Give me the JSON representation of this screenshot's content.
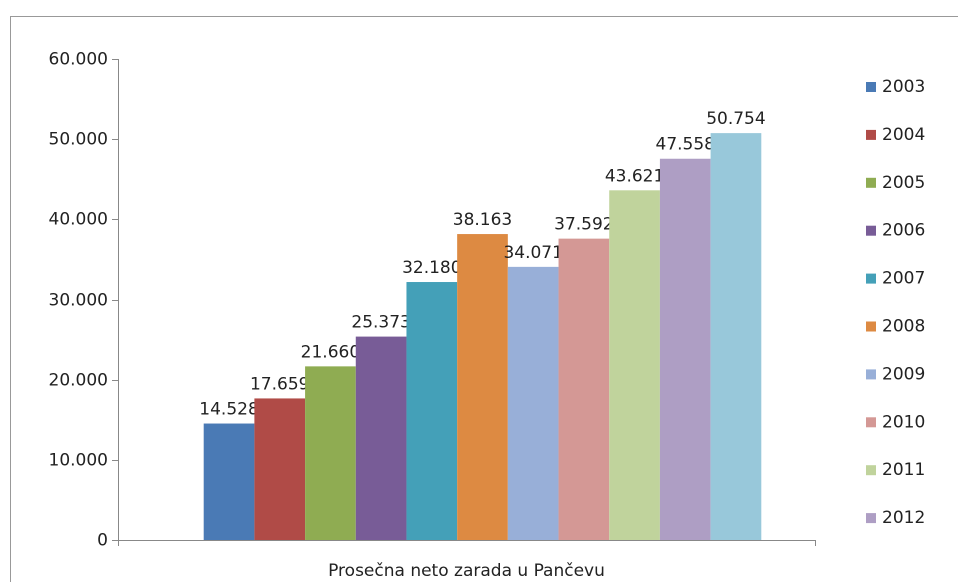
{
  "chart_data": {
    "type": "bar",
    "categories": [
      "Prosečna neto zarada u Pančevu"
    ],
    "series": [
      {
        "name": "2003",
        "color": "#4a7ab5",
        "values": [
          14528
        ],
        "value_labels": [
          "14.528"
        ]
      },
      {
        "name": "2004",
        "color": "#b04b47",
        "values": [
          17659
        ],
        "value_labels": [
          "17.659"
        ]
      },
      {
        "name": "2005",
        "color": "#8fac52",
        "values": [
          21660
        ],
        "value_labels": [
          "21.660"
        ]
      },
      {
        "name": "2006",
        "color": "#785c97",
        "values": [
          25373
        ],
        "value_labels": [
          "25.373"
        ]
      },
      {
        "name": "2007",
        "color": "#44a0b8",
        "values": [
          32180
        ],
        "value_labels": [
          "32.180"
        ]
      },
      {
        "name": "2008",
        "color": "#dd8a42",
        "values": [
          38163
        ],
        "value_labels": [
          "38.163"
        ]
      },
      {
        "name": "2009",
        "color": "#98afd8",
        "values": [
          34071
        ],
        "value_labels": [
          "34.071"
        ]
      },
      {
        "name": "2010",
        "color": "#d49895",
        "values": [
          37592
        ],
        "value_labels": [
          "37.592"
        ]
      },
      {
        "name": "2011",
        "color": "#c0d39c",
        "values": [
          43621
        ],
        "value_labels": [
          "43.621"
        ]
      },
      {
        "name": "2012",
        "color": "#ae9ec4",
        "values": [
          47558
        ],
        "value_labels": [
          "47.558"
        ]
      },
      {
        "name": null,
        "color": "#98c8da",
        "values": [
          50754
        ],
        "value_labels": [
          "50.754"
        ]
      }
    ],
    "ylim": [
      0,
      60000
    ],
    "yticks": [
      0,
      {
        "value": 10000,
        "label": "10.000"
      },
      {
        "value": 20000,
        "label": "20.000"
      },
      {
        "value": 30000,
        "label": "30.000"
      },
      {
        "value": 40000,
        "label": "40.000"
      },
      {
        "value": 50000,
        "label": "50.000"
      },
      {
        "value": 60000,
        "label": "60.000"
      }
    ],
    "legend": "right"
  }
}
